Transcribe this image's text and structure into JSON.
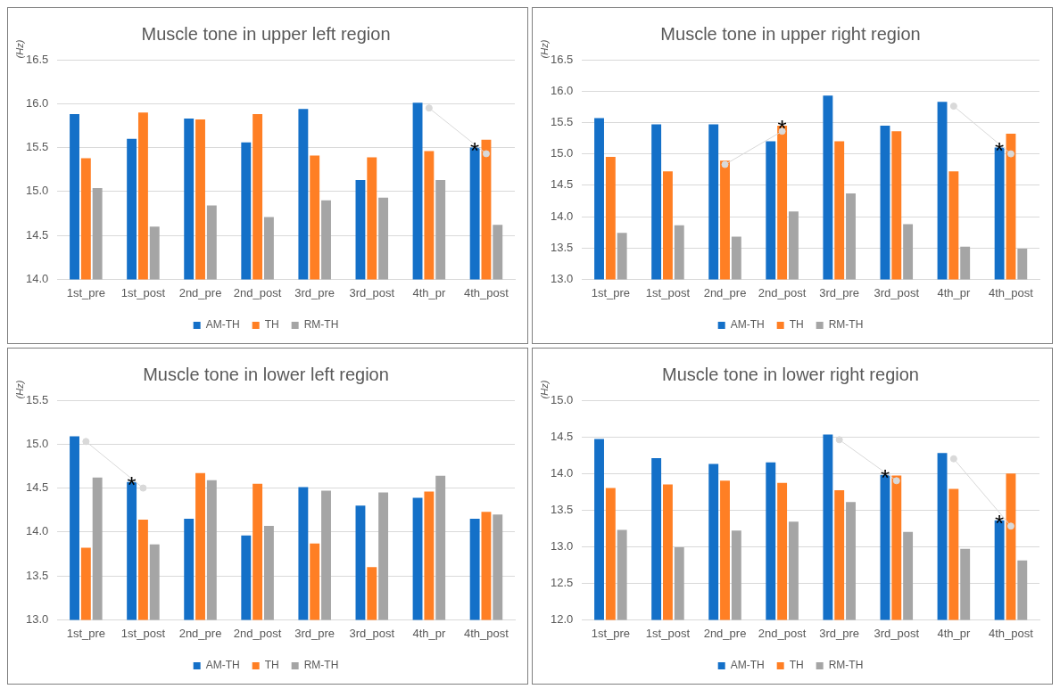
{
  "chart_data": [
    {
      "type": "bar",
      "title": "Muscle tone in upper left region",
      "ylabel": "(Hz)",
      "categories": [
        "1st_pre",
        "1st_post",
        "2nd_pre",
        "2nd_post",
        "3rd_pre",
        "3rd_post",
        "4th_pr",
        "4th_post"
      ],
      "ylim": [
        14,
        16.5
      ],
      "yticks": [
        {
          "value": 14,
          "label": "14.0"
        },
        {
          "value": 14.5,
          "label": "14.5"
        },
        {
          "value": 15,
          "label": "15.0"
        },
        {
          "value": 15.5,
          "label": "15.5"
        },
        {
          "value": 16,
          "label": "16.0"
        },
        {
          "value": 16.5,
          "label": "16.5"
        }
      ],
      "grid": "y",
      "legend": "bottom",
      "series": [
        {
          "name": "AM-TH",
          "color": "#1470c8",
          "values": [
            15.88,
            15.6,
            15.83,
            15.56,
            15.94,
            15.13,
            16.01,
            15.5
          ]
        },
        {
          "name": "TH",
          "color": "#ff7f24",
          "values": [
            15.38,
            15.9,
            15.82,
            15.88,
            15.41,
            15.39,
            15.46,
            15.59
          ]
        },
        {
          "name": "RM-TH",
          "color": "#a5a5a5",
          "values": [
            15.04,
            14.6,
            14.84,
            14.71,
            14.9,
            14.93,
            15.13,
            14.62
          ]
        },
        {
          "type": "line",
          "color": "#d9d9d9",
          "marker": "circle",
          "values": [
            null,
            null,
            null,
            null,
            null,
            null,
            15.95,
            15.43
          ]
        }
      ],
      "annotations": [
        {
          "text": "*",
          "x": "4th_post",
          "y": 15.5
        }
      ]
    },
    {
      "type": "bar",
      "title": "Muscle tone in upper right region",
      "ylabel": "(Hz)",
      "categories": [
        "1st_pre",
        "1st_post",
        "2nd_pre",
        "2nd_post",
        "3rd_pre",
        "3rd_post",
        "4th_pr",
        "4th_post"
      ],
      "ylim": [
        13,
        16.5
      ],
      "yticks": [
        {
          "value": 13,
          "label": "13.0"
        },
        {
          "value": 13.5,
          "label": "13.5"
        },
        {
          "value": 14,
          "label": "14.0"
        },
        {
          "value": 14.5,
          "label": "14.5"
        },
        {
          "value": 15,
          "label": "15.0"
        },
        {
          "value": 15.5,
          "label": "15.5"
        },
        {
          "value": 16,
          "label": "16.0"
        },
        {
          "value": 16.5,
          "label": "16.5"
        }
      ],
      "grid": "y",
      "legend": "bottom",
      "series": [
        {
          "name": "AM-TH",
          "color": "#1470c8",
          "values": [
            15.57,
            15.47,
            15.47,
            15.2,
            15.93,
            15.45,
            15.83,
            15.1
          ]
        },
        {
          "name": "TH",
          "color": "#ff7f24",
          "values": [
            14.95,
            14.72,
            14.89,
            15.45,
            15.2,
            15.36,
            14.72,
            15.32
          ]
        },
        {
          "name": "RM-TH",
          "color": "#a5a5a5",
          "values": [
            13.74,
            13.86,
            13.68,
            14.08,
            14.37,
            13.88,
            13.52,
            13.49
          ]
        },
        {
          "type": "line",
          "color": "#d9d9d9",
          "marker": "circle",
          "values": [
            null,
            null,
            14.83,
            15.36,
            null,
            null,
            null,
            null
          ]
        },
        {
          "type": "line",
          "color": "#d9d9d9",
          "marker": "circle",
          "values": [
            null,
            null,
            null,
            null,
            null,
            null,
            15.76,
            15.0
          ]
        }
      ],
      "annotations": [
        {
          "text": "*",
          "x": "2nd_post",
          "y": 15.45
        },
        {
          "text": "*",
          "x": "4th_post",
          "y": 15.1
        }
      ]
    },
    {
      "type": "bar",
      "title": "Muscle tone in lower left region",
      "ylabel": "(Hz)",
      "categories": [
        "1st_pre",
        "1st_post",
        "2nd_pre",
        "2nd_post",
        "3rd_pre",
        "3rd_post",
        "4th_pr",
        "4th_post"
      ],
      "ylim": [
        13,
        15.5
      ],
      "yticks": [
        {
          "value": 13,
          "label": "13.0"
        },
        {
          "value": 13.5,
          "label": "13.5"
        },
        {
          "value": 14,
          "label": "14.0"
        },
        {
          "value": 14.5,
          "label": "14.5"
        },
        {
          "value": 15,
          "label": "15.0"
        },
        {
          "value": 15.5,
          "label": "15.5"
        }
      ],
      "grid": "y",
      "legend": "bottom",
      "series": [
        {
          "name": "AM-TH",
          "color": "#1470c8",
          "values": [
            15.09,
            14.57,
            14.15,
            13.96,
            14.51,
            14.3,
            14.39,
            14.15
          ]
        },
        {
          "name": "TH",
          "color": "#ff7f24",
          "values": [
            13.82,
            14.14,
            14.67,
            14.55,
            13.87,
            13.6,
            14.46,
            14.23
          ]
        },
        {
          "name": "RM-TH",
          "color": "#a5a5a5",
          "values": [
            14.62,
            13.86,
            14.59,
            14.07,
            14.47,
            14.45,
            14.64,
            14.2
          ]
        },
        {
          "type": "line",
          "color": "#d9d9d9",
          "marker": "circle",
          "values": [
            15.03,
            14.5,
            null,
            null,
            null,
            null,
            null,
            null
          ]
        }
      ],
      "annotations": [
        {
          "text": "*",
          "x": "1st_post",
          "y": 14.57
        }
      ]
    },
    {
      "type": "bar",
      "title": "Muscle tone in lower right region",
      "ylabel": "(Hz)",
      "categories": [
        "1st_pre",
        "1st_post",
        "2nd_pre",
        "2nd_post",
        "3rd_pre",
        "3rd_post",
        "4th_pr",
        "4th_post"
      ],
      "ylim": [
        12,
        15
      ],
      "yticks": [
        {
          "value": 12,
          "label": "12.0"
        },
        {
          "value": 12.5,
          "label": "12.5"
        },
        {
          "value": 13,
          "label": "13.0"
        },
        {
          "value": 13.5,
          "label": "13.5"
        },
        {
          "value": 14,
          "label": "14.0"
        },
        {
          "value": 14.5,
          "label": "14.5"
        },
        {
          "value": 15,
          "label": "15.0"
        }
      ],
      "grid": "y",
      "legend": "bottom",
      "series": [
        {
          "name": "AM-TH",
          "color": "#1470c8",
          "values": [
            14.47,
            14.21,
            14.13,
            14.15,
            14.53,
            13.98,
            14.28,
            13.36
          ]
        },
        {
          "name": "TH",
          "color": "#ff7f24",
          "values": [
            13.8,
            13.85,
            13.9,
            13.87,
            13.77,
            13.97,
            13.79,
            14.0
          ]
        },
        {
          "name": "RM-TH",
          "color": "#a5a5a5",
          "values": [
            13.23,
            12.99,
            13.22,
            13.34,
            13.61,
            13.2,
            12.97,
            12.81
          ]
        },
        {
          "type": "line",
          "color": "#d9d9d9",
          "marker": "circle",
          "values": [
            null,
            null,
            null,
            null,
            14.46,
            13.9,
            null,
            null
          ]
        },
        {
          "type": "line",
          "color": "#d9d9d9",
          "marker": "circle",
          "values": [
            null,
            null,
            null,
            null,
            null,
            null,
            14.2,
            13.28
          ]
        }
      ],
      "annotations": [
        {
          "text": "*",
          "x": "3rd_post",
          "y": 13.98
        },
        {
          "text": "*",
          "x": "4th_post",
          "y": 13.36
        }
      ]
    }
  ]
}
